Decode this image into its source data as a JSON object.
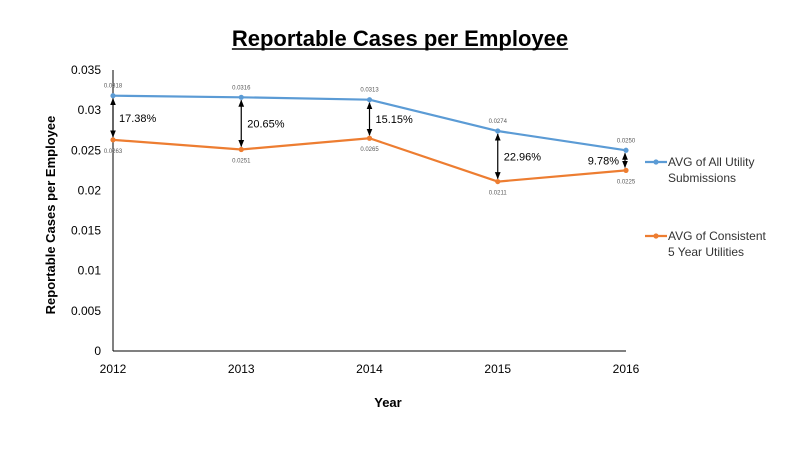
{
  "chart_data": {
    "type": "line",
    "title": "Reportable Cases per Employee",
    "xlabel": "Year",
    "ylabel": "Reportable Cases per Employee",
    "x": [
      "2012",
      "2013",
      "2014",
      "2015",
      "2016"
    ],
    "ylim": [
      0,
      0.035
    ],
    "yticks": [
      "0",
      "0.005",
      "0.01",
      "0.015",
      "0.02",
      "0.025",
      "0.03",
      "0.035"
    ],
    "grid": false,
    "legend": "right",
    "series": [
      {
        "name": "AVG of All Utility Submissions",
        "legend_lines": [
          "AVG of All Utility",
          "Submissions"
        ],
        "color": "#5B9BD5",
        "values": [
          0.0318,
          0.0316,
          0.0313,
          0.0274,
          0.025
        ],
        "labels": [
          "0.0318",
          "0.0316",
          "0.0313",
          "0.0274",
          "0.0250"
        ]
      },
      {
        "name": "AVG of Consistent 5 Year Utilities",
        "legend_lines": [
          "AVG of Consistent",
          "5 Year Utilities"
        ],
        "color": "#ED7D31",
        "values": [
          0.0263,
          0.0251,
          0.0265,
          0.0211,
          0.0225
        ],
        "labels": [
          "0.0263",
          "0.0251",
          "0.0265",
          "0.0211",
          "0.0225"
        ]
      }
    ],
    "annotations": [
      {
        "x_index": 0,
        "text": "17.38%",
        "side": "right"
      },
      {
        "x_index": 1,
        "text": "20.65%",
        "side": "right"
      },
      {
        "x_index": 2,
        "text": "15.15%",
        "side": "right"
      },
      {
        "x_index": 3,
        "text": "22.96%",
        "side": "right"
      },
      {
        "x_index": 4,
        "text": "9.78%",
        "side": "left"
      }
    ]
  }
}
